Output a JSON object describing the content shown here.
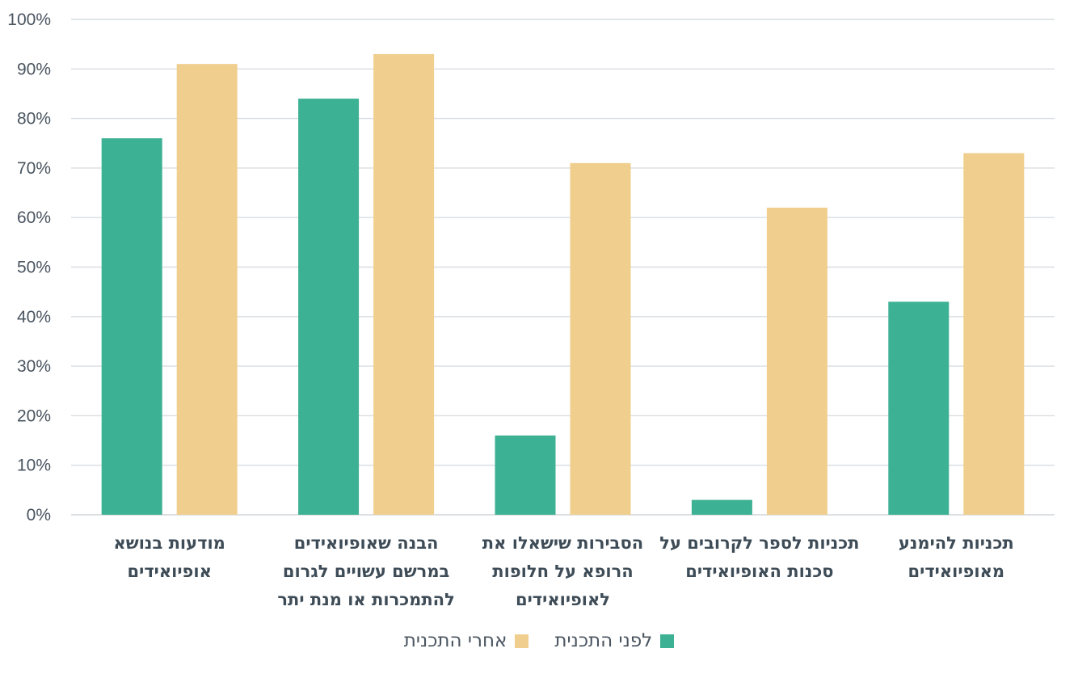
{
  "chart_data": {
    "type": "bar",
    "title": "",
    "xlabel": "",
    "ylabel": "",
    "ylim": [
      0,
      100
    ],
    "y_ticks": [
      "0%",
      "10%",
      "20%",
      "30%",
      "40%",
      "50%",
      "60%",
      "70%",
      "80%",
      "90%",
      "100%"
    ],
    "grid": true,
    "legend_position": "bottom",
    "categories": [
      [
        "מודעות בנושא",
        "אופיואידים"
      ],
      [
        "הבנה שאופיואידים",
        "במרשם עשויים לגרום",
        "להתמכרות או מנת יתר"
      ],
      [
        "הסבירות שישאלו את",
        "הרופא על חלופות",
        "לאופיואידים"
      ],
      [
        "תכניות לספר לקרובים על",
        "סכנות האופיואידים"
      ],
      [
        "תכניות להימנע",
        "מאופיואידים"
      ]
    ],
    "series": [
      {
        "name": "לפני התכנית",
        "color": "#3db193",
        "values": [
          76,
          84,
          16,
          3,
          43
        ]
      },
      {
        "name": "אחרי התכנית",
        "color": "#f0cf8e",
        "values": [
          91,
          93,
          71,
          62,
          73
        ]
      }
    ]
  }
}
